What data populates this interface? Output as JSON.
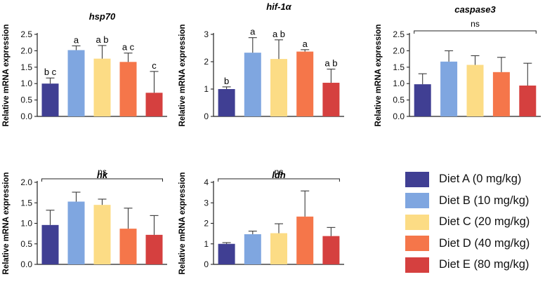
{
  "series_colors": [
    "#403f93",
    "#7fa6e0",
    "#fcdc85",
    "#f5764a",
    "#d5403f"
  ],
  "error_bar_color": "#3a3a3a",
  "axis_color": "#222222",
  "legend": {
    "items": [
      {
        "label": "Diet A (0 mg/kg)",
        "color": "#403f93"
      },
      {
        "label": "Diet B (10 mg/kg)",
        "color": "#7fa6e0"
      },
      {
        "label": "Diet C (20 mg/kg)",
        "color": "#fcdc85"
      },
      {
        "label": "Diet D (40 mg/kg)",
        "color": "#f5764a"
      },
      {
        "label": "Diet E (80 mg/kg)",
        "color": "#d5403f"
      }
    ]
  },
  "chart_data": [
    {
      "type": "bar",
      "title": "hsp70",
      "ylabel": "Relative mRNA expression",
      "categories": [
        "Diet A (0 mg/kg)",
        "Diet B (10 mg/kg)",
        "Diet C (20 mg/kg)",
        "Diet D (40 mg/kg)",
        "Diet E (80 mg/kg)"
      ],
      "values": [
        1.0,
        2.02,
        1.76,
        1.66,
        0.72
      ],
      "errors": [
        0.17,
        0.13,
        0.4,
        0.27,
        0.65
      ],
      "sig_labels": [
        "b c",
        "a",
        "a b",
        "a c",
        "c"
      ],
      "ylim": [
        0,
        2.5
      ],
      "yticks": [
        "0.0",
        "0.5",
        "1.0",
        "1.5",
        "2.0",
        "2.5"
      ]
    },
    {
      "type": "bar",
      "title": "hif-1α",
      "ylabel": "Relative mRNA expression",
      "categories": [
        "Diet A (0 mg/kg)",
        "Diet B (10 mg/kg)",
        "Diet C (20 mg/kg)",
        "Diet D (40 mg/kg)",
        "Diet E (80 mg/kg)"
      ],
      "values": [
        1.0,
        2.33,
        2.1,
        2.37,
        1.23
      ],
      "errors": [
        0.08,
        0.55,
        0.7,
        0.07,
        0.5
      ],
      "sig_labels": [
        "b",
        "a",
        "a b",
        "a",
        "a b"
      ],
      "ylim": [
        0,
        3
      ],
      "yticks": [
        "0",
        "1",
        "2",
        "3"
      ]
    },
    {
      "type": "bar",
      "title": "caspase3",
      "ylabel": "Relative mRNA expression",
      "categories": [
        "Diet A (0 mg/kg)",
        "Diet B (10 mg/kg)",
        "Diet C (20 mg/kg)",
        "Diet D (40 mg/kg)",
        "Diet E (80 mg/kg)"
      ],
      "values": [
        0.98,
        1.67,
        1.57,
        1.35,
        0.94
      ],
      "errors": [
        0.32,
        0.33,
        0.28,
        0.45,
        0.68
      ],
      "significance": "ns",
      "ylim": [
        0,
        2.5
      ],
      "yticks": [
        "0.0",
        "0.5",
        "1.0",
        "1.5",
        "2.0",
        "2.5"
      ]
    },
    {
      "type": "bar",
      "title": "hk",
      "ylabel": "Relative mRNA expression",
      "categories": [
        "Diet A (0 mg/kg)",
        "Diet B (10 mg/kg)",
        "Diet C (20 mg/kg)",
        "Diet D (40 mg/kg)",
        "Diet E (80 mg/kg)"
      ],
      "values": [
        0.96,
        1.53,
        1.45,
        0.87,
        0.72
      ],
      "errors": [
        0.36,
        0.23,
        0.14,
        0.5,
        0.47
      ],
      "significance": "ns",
      "ylim": [
        0,
        2.0
      ],
      "yticks": [
        "0.0",
        "0.5",
        "1.0",
        "1.5",
        "2.0"
      ]
    },
    {
      "type": "bar",
      "title": "ldh",
      "ylabel": "Relative mRNA expression",
      "categories": [
        "Diet A (0 mg/kg)",
        "Diet B (10 mg/kg)",
        "Diet C (20 mg/kg)",
        "Diet D (40 mg/kg)",
        "Diet E (80 mg/kg)"
      ],
      "values": [
        1.0,
        1.47,
        1.52,
        2.33,
        1.38
      ],
      "errors": [
        0.06,
        0.15,
        0.46,
        1.25,
        0.42
      ],
      "significance": "ns",
      "ylim": [
        0,
        4
      ],
      "yticks": [
        "0",
        "1",
        "2",
        "3",
        "4"
      ]
    }
  ]
}
